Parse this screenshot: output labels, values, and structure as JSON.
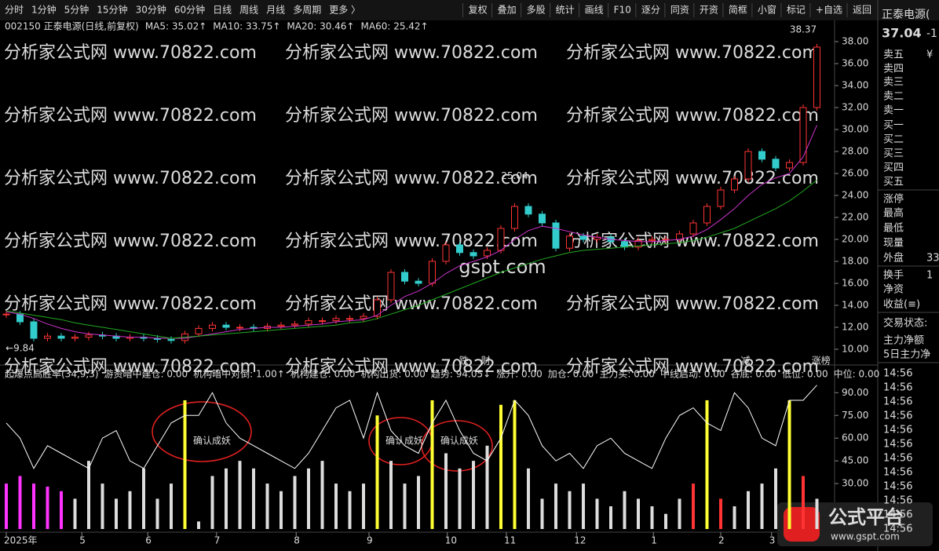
{
  "toolbar_left": [
    "分时",
    "1分钟",
    "5分钟",
    "15分钟",
    "30分钟",
    "60分钟",
    "日线",
    "周线",
    "月线",
    "多周期",
    "更多 〉"
  ],
  "active_index": 6,
  "toolbar_right": [
    "复权",
    "叠加",
    "多股",
    "统计",
    "画线",
    "F10",
    "逐分",
    "同资",
    "开资",
    "简框",
    "小窗",
    "标记",
    "+自选",
    "返回"
  ],
  "panel": {
    "name": "正泰电源(",
    "price": "37.04",
    "change": "-1",
    "rows": [
      {
        "label": "卖五",
        "value": "¥"
      },
      {
        "label": "卖四"
      },
      {
        "label": "卖三"
      },
      {
        "label": "卖二"
      },
      {
        "label": "卖一"
      },
      {
        "label": "买一"
      },
      {
        "label": "买二"
      },
      {
        "label": "买三"
      },
      {
        "label": "买四"
      },
      {
        "label": "买五"
      },
      {
        "label": "涨停"
      },
      {
        "label": "最高"
      },
      {
        "label": "最低"
      },
      {
        "label": "现量"
      },
      {
        "label": "外盘",
        "value": "33"
      },
      {
        "label": "换手",
        "value": "1"
      },
      {
        "label": "净资"
      },
      {
        "label": "收益(≡)"
      },
      {
        "label": "交易状态:"
      },
      {
        "label": "主力净额"
      },
      {
        "label": "5日主力净"
      }
    ],
    "times": [
      "14:56",
      "14:56",
      "14:56",
      "14:56",
      "14:56",
      "14:56",
      "14:56",
      "14:56",
      "14:56",
      "14:56",
      "14:56",
      "14:56"
    ]
  },
  "watermark": "分析家公式网 www.70822.com",
  "watermark2": "gspt.com",
  "logo": {
    "title": "公式平台",
    "url": "www.gspt.com"
  },
  "chart_data": {
    "type": "candlestick",
    "info": [
      {
        "text": "002150 正泰电源(日线,前复权)",
        "color": "#dddddd"
      },
      {
        "text": "MA5: 35.02↑",
        "color": "#ffffff"
      },
      {
        "text": "MA10: 33.75↑",
        "color": "#ffff33"
      },
      {
        "text": "MA20: 30.46↑",
        "color": "#ff33ff"
      },
      {
        "text": "MA60: 25.42↑",
        "color": "#33cc33"
      }
    ],
    "close": [
      13.2,
      12.5,
      11.0,
      11.2,
      11.0,
      11.1,
      11.3,
      11.2,
      11.0,
      11.1,
      11.0,
      10.9,
      10.8,
      11.4,
      11.9,
      12.2,
      12.0,
      12.0,
      11.9,
      12.1,
      12.2,
      12.3,
      12.6,
      12.6,
      12.8,
      12.8,
      13.0,
      14.5,
      17.0,
      16.2,
      16.0,
      18.0,
      19.5,
      18.8,
      18.5,
      19.0,
      21.0,
      23.0,
      22.3,
      21.5,
      19.2,
      20.3,
      20.0,
      20.2,
      19.8,
      19.3,
      19.9,
      20.0,
      20.0,
      20.5,
      21.5,
      23.0,
      24.5,
      25.5,
      28.0,
      27.3,
      26.5,
      27.0,
      32.0,
      37.5
    ],
    "ma20": [
      13.4,
      13.2,
      12.8,
      12.3,
      11.9,
      11.6,
      11.4,
      11.3,
      11.2,
      11.1,
      11.1,
      11.0,
      11.0,
      11.0,
      11.2,
      11.4,
      11.6,
      11.8,
      11.9,
      12.0,
      12.0,
      12.1,
      12.2,
      12.3,
      12.5,
      12.6,
      12.7,
      13.1,
      14.0,
      14.8,
      15.3,
      16.0,
      16.9,
      17.6,
      18.0,
      18.4,
      19.0,
      20.0,
      20.8,
      21.2,
      21.0,
      20.7,
      20.4,
      20.2,
      20.0,
      19.9,
      19.8,
      19.8,
      19.9,
      20.0,
      20.3,
      20.9,
      21.8,
      22.8,
      24.0,
      25.0,
      25.6,
      26.0,
      27.5,
      30.4
    ],
    "ma60": [
      13.5,
      13.3,
      13.1,
      12.9,
      12.7,
      12.4,
      12.2,
      12.0,
      11.8,
      11.6,
      11.4,
      11.2,
      11.0,
      11.1,
      11.2,
      11.3,
      11.4,
      11.5,
      11.6,
      11.7,
      11.8,
      11.9,
      12.0,
      12.1,
      12.2,
      12.4,
      12.5,
      12.8,
      13.2,
      13.6,
      14.0,
      14.5,
      15.0,
      15.5,
      16.0,
      16.5,
      17.0,
      17.4,
      17.8,
      18.2,
      18.5,
      18.8,
      19.0,
      19.1,
      19.2,
      19.3,
      19.4,
      19.5,
      19.6,
      19.7,
      19.9,
      20.2,
      20.6,
      21.0,
      21.6,
      22.2,
      22.8,
      23.5,
      24.4,
      25.4
    ],
    "ylim": [
      10,
      38
    ],
    "yticks": [
      {
        "value": 38,
        "label": "38.00"
      },
      {
        "value": 36,
        "label": "36.00"
      },
      {
        "value": 34,
        "label": "34.00"
      },
      {
        "value": 32,
        "label": "32.00"
      },
      {
        "value": 30,
        "label": "30.00"
      },
      {
        "value": 28,
        "label": "28.00"
      },
      {
        "value": 26,
        "label": "26.00"
      },
      {
        "value": 24,
        "label": "24.00"
      },
      {
        "value": 22,
        "label": "22.00"
      },
      {
        "value": 20,
        "label": "20.00"
      },
      {
        "value": 18,
        "label": "18.00"
      },
      {
        "value": 16,
        "label": "16.00"
      },
      {
        "value": 14,
        "label": "14.00"
      },
      {
        "value": 12,
        "label": "12.00"
      },
      {
        "value": 10,
        "label": "10.00"
      }
    ],
    "annotations": [
      {
        "index": 37,
        "value": 25.04,
        "label": "25.04"
      },
      {
        "index": 58,
        "value": 38.37,
        "label": "38.37"
      },
      {
        "index": 1,
        "value": 9.84,
        "label": "←9.84"
      }
    ],
    "markers": [
      {
        "index": 33.3,
        "label": "跌",
        "color": "#33cc33"
      },
      {
        "index": 34.9,
        "label": "财",
        "color": "#33cc33"
      },
      {
        "index": 53.8,
        "label": "减",
        "color": "#33cc33"
      },
      {
        "index": 59.3,
        "label": "涨榜",
        "color": "#ff5555"
      }
    ],
    "xticks": [
      {
        "value": 0,
        "label": "2025年"
      },
      {
        "value": 5.5,
        "label": "5"
      },
      {
        "value": 10.3,
        "label": "6"
      },
      {
        "value": 15.3,
        "label": "7"
      },
      {
        "value": 21.1,
        "label": "8"
      },
      {
        "value": 26.4,
        "label": "9"
      },
      {
        "value": 32.1,
        "label": "10"
      },
      {
        "value": 36.4,
        "label": "11"
      },
      {
        "value": 41.5,
        "label": "12"
      },
      {
        "value": 47.1,
        "label": "1"
      },
      {
        "value": 52,
        "label": "2"
      },
      {
        "value": 55.7,
        "label": "3"
      }
    ],
    "indicator": {
      "info": [
        {
          "text": "起爆点高胜率(34,9,3)",
          "color": "#dddddd"
        },
        {
          "text": "游资暗中建仓: 0.00",
          "color": "#ff3399"
        },
        {
          "text": "机构暗中对倒: 1.00↑",
          "color": "#ffffff"
        },
        {
          "text": "机构建仓: 0.00",
          "color": "#ff33ff"
        },
        {
          "text": "机构出货: 0.00",
          "color": "#33cc33"
        },
        {
          "text": "趋势: 94.05↓",
          "color": "#ffffff"
        },
        {
          "text": "涨升: 0.00",
          "color": "#33cccc"
        },
        {
          "text": "加仓: 0.00",
          "color": "#dddddd"
        },
        {
          "text": "主力买: 0.00",
          "color": "#ffcc00"
        },
        {
          "text": "中线启动: 0.00",
          "color": "#cc66ff"
        },
        {
          "text": "谷底: 0.00",
          "color": "#ff3333"
        },
        {
          "text": "低位: 0.00",
          "color": "#dddddd"
        },
        {
          "text": "中位: 0.00",
          "color": "#ffcc00"
        }
      ],
      "line": [
        70,
        60,
        40,
        55,
        50,
        45,
        40,
        60,
        65,
        45,
        40,
        55,
        70,
        75,
        75,
        90,
        70,
        60,
        55,
        50,
        45,
        40,
        50,
        65,
        80,
        85,
        60,
        90,
        65,
        55,
        50,
        70,
        85,
        65,
        50,
        45,
        60,
        85,
        75,
        55,
        45,
        50,
        40,
        55,
        60,
        50,
        45,
        40,
        60,
        75,
        80,
        70,
        65,
        90,
        80,
        60,
        55,
        85,
        85,
        95
      ],
      "bars": [
        30,
        35,
        30,
        28,
        25,
        20,
        45,
        30,
        20,
        25,
        40,
        20,
        30,
        85,
        5,
        35,
        40,
        45,
        40,
        30,
        25,
        35,
        40,
        45,
        30,
        25,
        30,
        75,
        45,
        30,
        35,
        85,
        50,
        40,
        45,
        55,
        82,
        85,
        40,
        20,
        30,
        25,
        30,
        20,
        15,
        25,
        20,
        15,
        10,
        20,
        30,
        85,
        20,
        15,
        25,
        30,
        40,
        85,
        35,
        20
      ],
      "bar_colors": [
        "#ff33ff",
        "#ff33ff",
        "#ff33ff",
        "#ff33ff",
        "#ff33ff",
        "#dddddd",
        "#dddddd",
        "#dddddd",
        "#dddddd",
        "#dddddd",
        "#dddddd",
        "#dddddd",
        "#dddddd",
        "#ffff33",
        "#dddddd",
        "#dddddd",
        "#dddddd",
        "#dddddd",
        "#dddddd",
        "#dddddd",
        "#dddddd",
        "#dddddd",
        "#dddddd",
        "#dddddd",
        "#dddddd",
        "#dddddd",
        "#dddddd",
        "#ffff33",
        "#dddddd",
        "#dddddd",
        "#dddddd",
        "#ffff33",
        "#dddddd",
        "#dddddd",
        "#dddddd",
        "#dddddd",
        "#ffff33",
        "#ffff33",
        "#dddddd",
        "#dddddd",
        "#dddddd",
        "#dddddd",
        "#dddddd",
        "#dddddd",
        "#dddddd",
        "#dddddd",
        "#dddddd",
        "#dddddd",
        "#dddddd",
        "#dddddd",
        "#ff3333",
        "#ffff33",
        "#ff3333",
        "#dddddd",
        "#dddddd",
        "#dddddd",
        "#dddddd",
        "#ffff33",
        "#ff3333",
        "#dddddd"
      ],
      "ylim": [
        0,
        100
      ],
      "yticks": [
        {
          "value": 90,
          "label": "90.00"
        },
        {
          "value": 75,
          "label": "75.00"
        },
        {
          "value": 60,
          "label": "60.00"
        },
        {
          "value": 45,
          "label": "45.00"
        },
        {
          "value": 30,
          "label": "30.00"
        }
      ],
      "annotations": [
        {
          "index": 13.6,
          "value": 58,
          "label": "确认成妖"
        },
        {
          "index": 27.6,
          "value": 58,
          "label": "确认成妖"
        },
        {
          "index": 31.6,
          "value": 58,
          "label": "确认成妖"
        }
      ]
    }
  }
}
